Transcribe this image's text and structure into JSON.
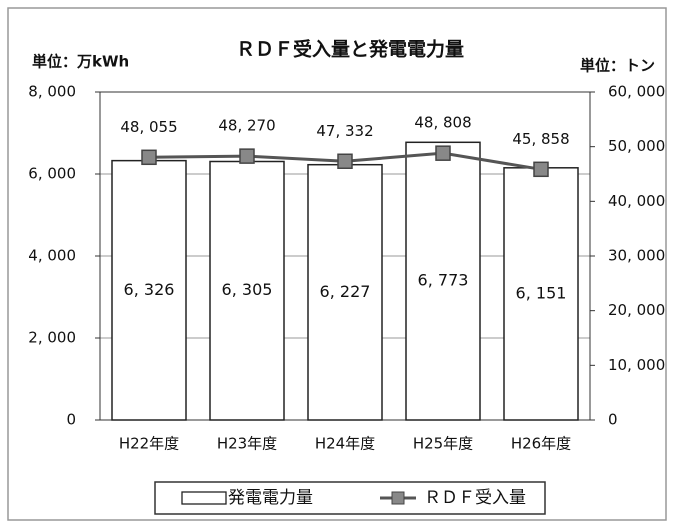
{
  "chart_data": {
    "type": "bar-line",
    "title": "ＲＤＦ受入量と発電電力量",
    "y_label": "単位：万kWh",
    "y2_label": "単位：トン",
    "categories": [
      "H22年度",
      "H23年度",
      "H24年度",
      "H25年度",
      "H26年度"
    ],
    "series": [
      {
        "name": "発電電力量",
        "type": "bar",
        "color": "#ffffff",
        "axis": "y",
        "values": [
          6326,
          6305,
          6227,
          6773,
          6151
        ],
        "value_labels": [
          "6, 326",
          "6, 305",
          "6, 227",
          "6, 773",
          "6, 151"
        ]
      },
      {
        "name": "ＲＤＦ受入量",
        "type": "line",
        "color": "#555555",
        "axis": "y2",
        "values": [
          48055,
          48270,
          47332,
          48808,
          45858
        ],
        "value_labels": [
          "48, 055",
          "48, 270",
          "47, 332",
          "48, 808",
          "45, 858"
        ]
      }
    ],
    "ylim": [
      0,
      8000
    ],
    "yticks": [
      0,
      {
        "value": 2000,
        "label": "2, 000"
      },
      {
        "value": 4000,
        "label": "4, 000"
      },
      {
        "value": 6000,
        "label": "6, 000"
      },
      {
        "value": 8000,
        "label": "8, 000"
      }
    ],
    "y2lim": [
      0,
      60000
    ],
    "y2ticks": [
      0,
      {
        "value": 10000,
        "label": "10, 000"
      },
      {
        "value": 20000,
        "label": "20, 000"
      },
      {
        "value": 30000,
        "label": "30, 000"
      },
      {
        "value": 40000,
        "label": "40, 000"
      },
      {
        "value": 50000,
        "label": "50, 000"
      },
      {
        "value": 60000,
        "label": "60, 000"
      }
    ],
    "grid": true,
    "legend": "bottom"
  }
}
